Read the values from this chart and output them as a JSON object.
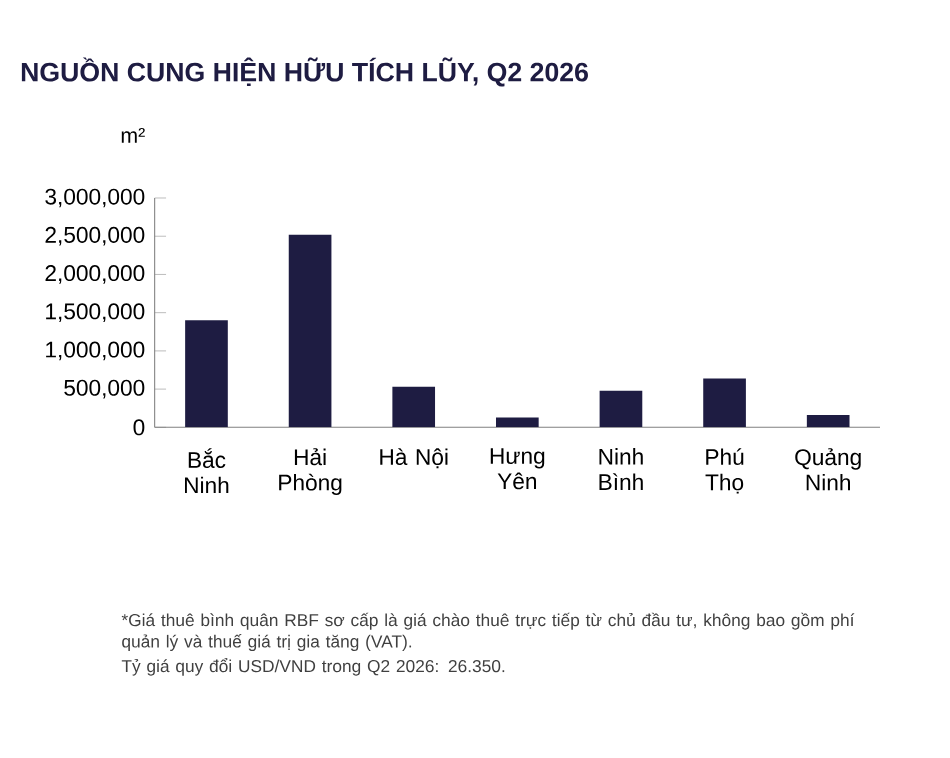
{
  "chart_data": {
    "type": "bar",
    "title": "NGUỒN CUNG HIỆN HỮU TÍCH LŨY, Q2 2026",
    "ylabel": "m²",
    "categories": [
      "Bắc Ninh",
      "Hải Phòng",
      "Hà Nội",
      "Hưng Yên",
      "Ninh Bình",
      "Phú Thọ",
      "Quảng Ninh"
    ],
    "values": [
      1400000,
      2520000,
      530000,
      130000,
      480000,
      640000,
      160000
    ],
    "color": "#1e1c42",
    "ylim": [
      0,
      3000000
    ],
    "yticks": [
      {
        "value": 0,
        "label": "0"
      },
      {
        "value": 500000,
        "label": "500,000"
      },
      {
        "value": 1000000,
        "label": "1,000,000"
      },
      {
        "value": 1500000,
        "label": "1,500,000"
      },
      {
        "value": 2000000,
        "label": "2,000,000"
      },
      {
        "value": 2500000,
        "label": "2,500,000"
      },
      {
        "value": 3000000,
        "label": "3,000,000"
      }
    ],
    "grid": false,
    "annotations": [
      "*Giá thuê bình quân RBF sơ cấp là giá chào thuê trực tiếp từ chủ đầu tư, không bao gồm phí quản lý và thuế giá trị gia tăng (VAT).",
      "Tỷ giá quy đổi USD/VND trong Q2 2026: 26.350."
    ]
  }
}
